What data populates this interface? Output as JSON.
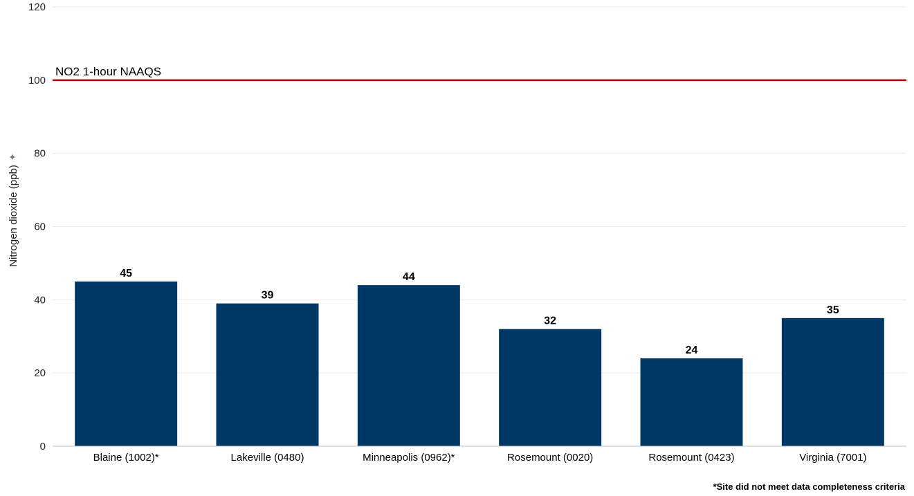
{
  "chart_data": {
    "type": "bar",
    "categories": [
      "Blaine (1002)*",
      "Lakeville (0480)",
      "Minneapolis (0962)*",
      "Rosemount (0020)",
      "Rosemount (0423)",
      "Virginia (7001)"
    ],
    "values": [
      45,
      39,
      44,
      32,
      24,
      35
    ],
    "ylabel": "Nitrogen dioxide (ppb)",
    "ylim": [
      0,
      120
    ],
    "yticks": [
      0,
      20,
      40,
      60,
      80,
      100,
      120
    ],
    "grid": true,
    "bar_color": "#003865",
    "reference_line": {
      "label": "NO2 1-hour NAAQS",
      "value": 100,
      "color": "#C00000"
    },
    "footnote": "*Site did not meet data completeness criteria"
  }
}
